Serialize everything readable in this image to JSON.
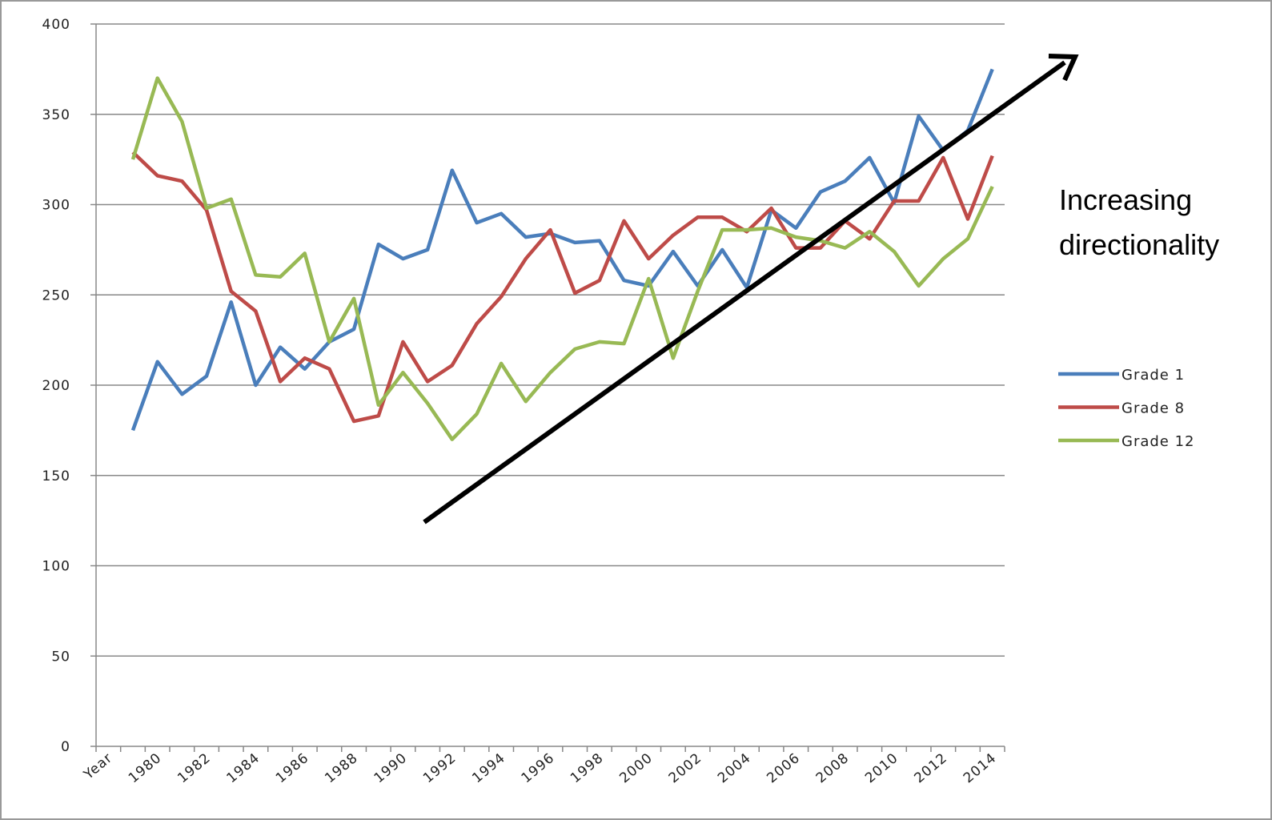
{
  "chart_data": {
    "type": "line",
    "categories": [
      "Year",
      null,
      "1980",
      null,
      "1982",
      null,
      "1984",
      null,
      "1986",
      null,
      "1988",
      null,
      "1990",
      null,
      "1992",
      null,
      "1994",
      null,
      "1996",
      null,
      "1998",
      null,
      "2000",
      null,
      "2002",
      null,
      "2004",
      null,
      "2006",
      null,
      "2008",
      null,
      "2010",
      null,
      "2012",
      null,
      "2014"
    ],
    "series": [
      {
        "name": "Grade 1",
        "color": "#4a7ebb",
        "values": [
          null,
          175,
          213,
          195,
          205,
          246,
          200,
          221,
          209,
          224,
          231,
          278,
          270,
          275,
          319,
          290,
          295,
          282,
          284,
          279,
          280,
          258,
          255,
          274,
          255,
          275,
          254,
          297,
          287,
          307,
          313,
          326,
          301,
          349,
          330,
          341,
          375
        ]
      },
      {
        "name": "Grade 8",
        "color": "#be4b48",
        "values": [
          null,
          329,
          316,
          313,
          297,
          252,
          241,
          202,
          215,
          209,
          180,
          183,
          224,
          202,
          211,
          234,
          249,
          270,
          286,
          251,
          258,
          291,
          270,
          283,
          293,
          293,
          285,
          298,
          276,
          276,
          291,
          281,
          302,
          302,
          326,
          292,
          327
        ]
      },
      {
        "name": "Grade 12",
        "color": "#98b954",
        "values": [
          null,
          325,
          370,
          346,
          298,
          303,
          261,
          260,
          273,
          224,
          248,
          189,
          207,
          190,
          170,
          184,
          212,
          191,
          207,
          220,
          224,
          223,
          259,
          215,
          252,
          286,
          286,
          287,
          282,
          280,
          276,
          285,
          274,
          255,
          270,
          281,
          310
        ]
      }
    ],
    "ylim": [
      0,
      400
    ],
    "yticks": [
      0,
      50,
      100,
      150,
      200,
      250,
      300,
      350,
      400
    ],
    "grid": true,
    "legend": "right",
    "annotation": [
      "Increasing",
      "directionality"
    ]
  }
}
